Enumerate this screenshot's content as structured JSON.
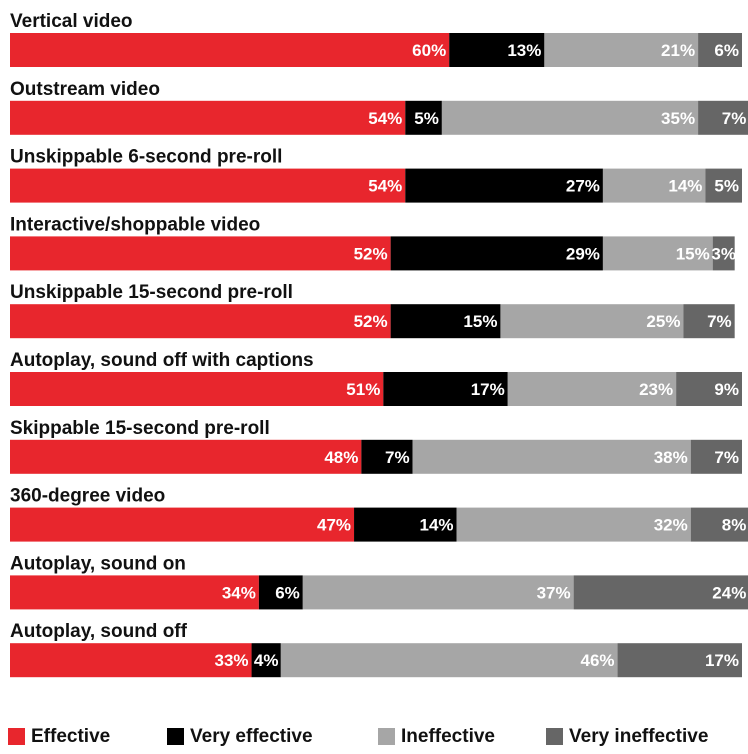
{
  "chart_data": {
    "type": "bar",
    "orientation": "horizontal",
    "stacked": true,
    "title": "",
    "xlabel": "",
    "ylabel": "",
    "xlim": [
      0,
      100
    ],
    "unit": "%",
    "grid": false,
    "legend_position": "bottom",
    "categories": [
      "Vertical video",
      "Outstream video",
      "Unskippable 6-second pre-roll",
      "Interactive/shoppable video",
      "Unskippable 15-second pre-roll",
      "Autoplay, sound off with captions",
      "Skippable 15-second pre-roll",
      "360-degree video",
      "Autoplay, sound on",
      "Autoplay, sound off"
    ],
    "series": [
      {
        "name": "Effective",
        "color": "#e8262d",
        "values": [
          60,
          54,
          54,
          52,
          52,
          51,
          48,
          47,
          34,
          33
        ]
      },
      {
        "name": "Very effective",
        "color": "#000000",
        "values": [
          13,
          5,
          27,
          29,
          15,
          17,
          7,
          14,
          6,
          4
        ]
      },
      {
        "name": "Ineffective",
        "color": "#a6a6a6",
        "values": [
          21,
          35,
          14,
          15,
          25,
          23,
          38,
          32,
          37,
          46
        ]
      },
      {
        "name": "Very ineffective",
        "color": "#666666",
        "values": [
          6,
          7,
          5,
          3,
          7,
          9,
          7,
          8,
          24,
          17
        ]
      }
    ]
  }
}
